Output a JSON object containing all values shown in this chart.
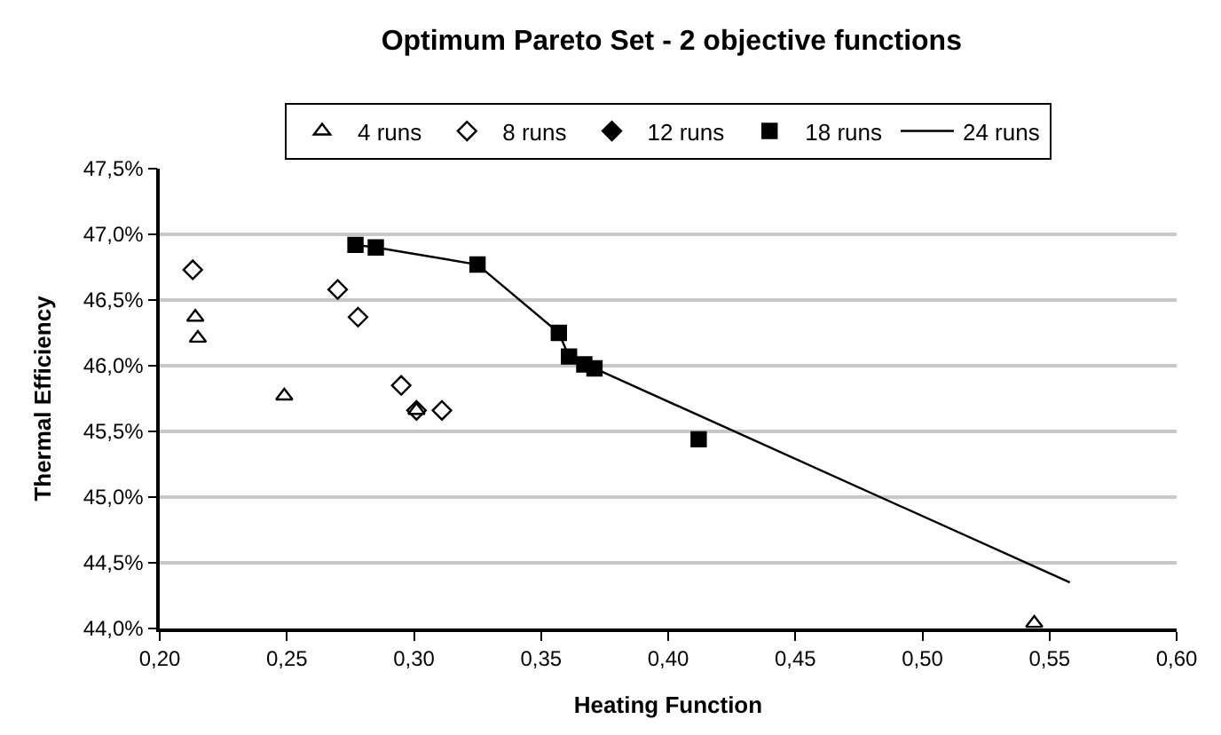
{
  "chart_data": {
    "type": "scatter",
    "title": "Optimum Pareto Set - 2 objective functions",
    "xlabel": "Heating Function",
    "ylabel": "Thermal Efficiency",
    "xlim": [
      0.2,
      0.6
    ],
    "ylim": [
      44.0,
      47.5
    ],
    "xticks": [
      {
        "value": 0.2,
        "label": "0,20"
      },
      {
        "value": 0.25,
        "label": "0,25"
      },
      {
        "value": 0.3,
        "label": "0,30"
      },
      {
        "value": 0.35,
        "label": "0,35"
      },
      {
        "value": 0.4,
        "label": "0,40"
      },
      {
        "value": 0.45,
        "label": "0,45"
      },
      {
        "value": 0.5,
        "label": "0,50"
      },
      {
        "value": 0.55,
        "label": "0,55"
      },
      {
        "value": 0.6,
        "label": "0,60"
      }
    ],
    "yticks": [
      {
        "value": 44.0,
        "label": "44,0%"
      },
      {
        "value": 44.5,
        "label": "44,5%"
      },
      {
        "value": 45.0,
        "label": "45,0%"
      },
      {
        "value": 45.5,
        "label": "45,5%"
      },
      {
        "value": 46.0,
        "label": "46,0%"
      },
      {
        "value": 46.5,
        "label": "46,5%"
      },
      {
        "value": 47.0,
        "label": "47,0%"
      },
      {
        "value": 47.5,
        "label": "47,5%"
      }
    ],
    "grid": "y",
    "legend": "top",
    "series": [
      {
        "name": "4 runs",
        "color": "#000000",
        "marker": "triangle",
        "x": [
          0.214,
          0.215,
          0.249,
          0.301,
          0.544
        ],
        "values": [
          46.37,
          46.21,
          45.77,
          45.66,
          44.04
        ]
      },
      {
        "name": "8 runs",
        "color": "#000000",
        "marker": "diamond",
        "x": [
          0.213,
          0.27,
          0.278,
          0.295,
          0.301,
          0.311
        ],
        "values": [
          46.73,
          46.58,
          46.37,
          45.85,
          45.66,
          45.66
        ]
      },
      {
        "name": "12 runs",
        "color": "#000000",
        "marker": "diamond",
        "x": [
          null
        ],
        "values": [
          null
        ]
      },
      {
        "name": "18 runs",
        "color": "#000000",
        "marker": "square",
        "x": [
          0.277,
          0.285,
          0.325,
          0.357,
          0.361,
          0.367,
          0.371,
          0.412
        ],
        "values": [
          46.92,
          46.9,
          46.77,
          46.25,
          46.07,
          46.01,
          45.98,
          45.44
        ]
      },
      {
        "name": "24 runs",
        "color": "#000000",
        "type": "line",
        "marker": "none",
        "x": [
          0.277,
          0.285,
          0.325,
          0.357,
          0.361,
          0.367,
          0.371,
          0.558
        ],
        "values": [
          46.92,
          46.9,
          46.77,
          46.25,
          46.07,
          46.01,
          45.98,
          44.35
        ]
      }
    ]
  }
}
